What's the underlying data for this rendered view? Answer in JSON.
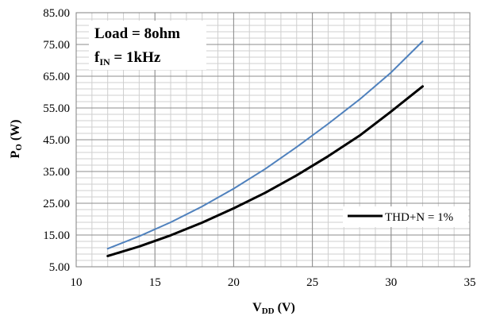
{
  "chart_data": {
    "type": "line",
    "xlim": [
      10,
      35
    ],
    "ylim": [
      5,
      85
    ],
    "x_ticks": [
      "10",
      "15",
      "20",
      "25",
      "30",
      "35"
    ],
    "y_ticks": [
      "5.00",
      "15.00",
      "25.00",
      "35.00",
      "45.00",
      "55.00",
      "65.00",
      "75.00",
      "85.00"
    ],
    "x_minor_step": 1,
    "y_minor_step": 2,
    "grid": true,
    "xlabel": {
      "main": "V",
      "sub": "DD",
      "tail": " (V)"
    },
    "ylabel": {
      "main": "P",
      "sub": "O",
      "tail": " (W)"
    },
    "annotations": {
      "line1": "Load = 8ohm",
      "line2_main": "f",
      "line2_sub": "IN",
      "line2_tail": " = 1kHz"
    },
    "legend": {
      "label": "THD+N = 1%",
      "position": "right-middle"
    },
    "series": [
      {
        "name": "THD+N = 1%",
        "color": "#000000",
        "x": [
          12,
          14,
          16,
          18,
          20,
          22,
          24,
          26,
          28,
          30,
          32
        ],
        "y": [
          8.4,
          11.4,
          14.9,
          18.9,
          23.4,
          28.3,
          33.8,
          39.8,
          46.3,
          53.9,
          61.8
        ]
      },
      {
        "name": "",
        "color": "#4f81bd",
        "x": [
          12,
          14,
          16,
          18,
          20,
          22,
          24,
          26,
          28,
          30,
          32
        ],
        "y": [
          10.7,
          14.6,
          19.0,
          24.0,
          29.6,
          35.8,
          42.7,
          50.0,
          57.7,
          66.2,
          76.0
        ]
      }
    ]
  }
}
